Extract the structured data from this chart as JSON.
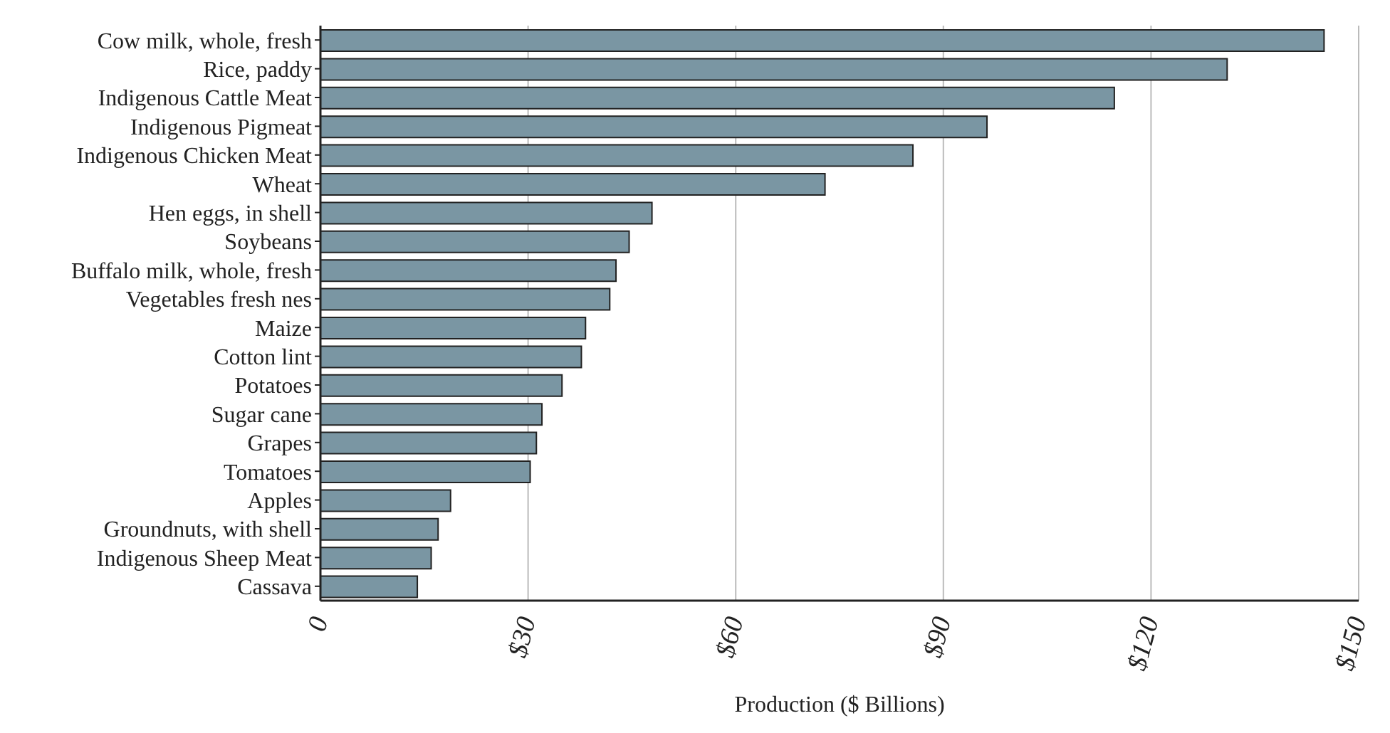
{
  "chart_data": {
    "type": "bar",
    "orientation": "horizontal",
    "xlabel": "Production ($ Billions)",
    "categories": [
      "Cow milk, whole, fresh",
      "Rice, paddy",
      "Indigenous Cattle Meat",
      "Indigenous Pigmeat",
      "Indigenous Chicken Meat",
      "Wheat",
      "Hen eggs, in shell",
      "Soybeans",
      "Buffalo milk, whole, fresh",
      "Vegetables fresh nes",
      "Maize",
      "Cotton lint",
      "Potatoes",
      "Sugar cane",
      "Grapes",
      "Tomatoes",
      "Apples",
      "Groundnuts, with shell",
      "Indigenous Sheep Meat",
      "Cassava"
    ],
    "values": [
      145,
      131,
      114.7,
      96.3,
      85.6,
      72.9,
      47.9,
      44.6,
      42.7,
      41.8,
      38.3,
      37.7,
      34.9,
      32.0,
      31.2,
      30.3,
      18.8,
      17.0,
      16.0,
      14.0
    ],
    "color": "#7a96a3",
    "xlim": [
      0,
      150
    ],
    "xticks": [
      0,
      {
        "value": 30,
        "label": "$30"
      },
      {
        "value": 60,
        "label": "$60"
      },
      {
        "value": 90,
        "label": "$90"
      },
      {
        "value": 120,
        "label": "$120"
      },
      {
        "value": 150,
        "label": "$150"
      }
    ],
    "grid": "x"
  }
}
